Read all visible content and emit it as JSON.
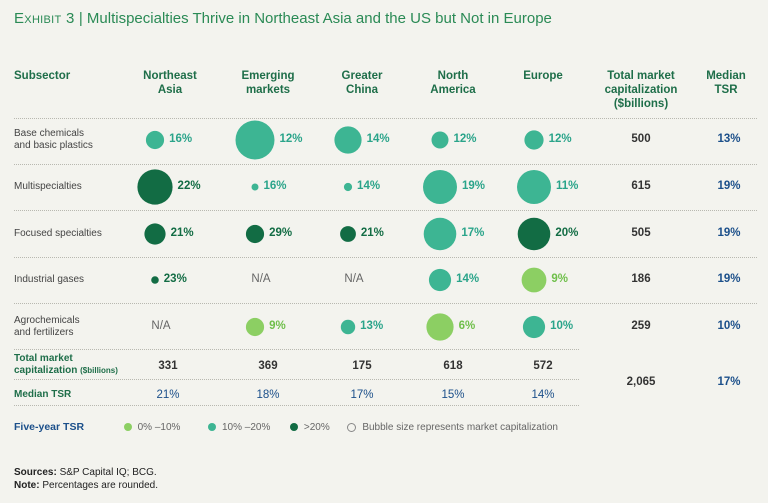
{
  "title_prefix": "Exhibit 3",
  "title_sep": "|",
  "title_text": "Multispecialties Thrive in Northeast Asia and the US but Not in Europe",
  "colors": {
    "low": "#8ccf63",
    "mid": "#3db593",
    "high": "#126c44",
    "pct_low": "#6fbf4a",
    "pct_mid": "#2aa48a",
    "pct_high": "#126c44"
  },
  "headers": {
    "subsector": "Subsector",
    "regions": [
      "Northeast\nAsia",
      "Emerging\nmarkets",
      "Greater\nChina",
      "North\nAmerica",
      "Europe"
    ],
    "total": "Total market\ncapitalization\n($billions)",
    "median": "Median\nTSR"
  },
  "chart_data": {
    "type": "bubble-table",
    "regions": [
      "Northeast Asia",
      "Emerging markets",
      "Greater China",
      "North America",
      "Europe"
    ],
    "rows": [
      {
        "label": "Base chemicals\nand basic plastics",
        "cells": [
          {
            "tsr": "16%",
            "bucket": "mid",
            "cap": 40
          },
          {
            "tsr": "12%",
            "bucket": "mid",
            "cap": 185
          },
          {
            "tsr": "14%",
            "bucket": "mid",
            "cap": 90
          },
          {
            "tsr": "12%",
            "bucket": "mid",
            "cap": 35
          },
          {
            "tsr": "12%",
            "bucket": "mid",
            "cap": 45
          }
        ],
        "total": "500",
        "median": "13%"
      },
      {
        "label": "Multispecialties",
        "cells": [
          {
            "tsr": "22%",
            "bucket": "high",
            "cap": 150
          },
          {
            "tsr": "16%",
            "bucket": "mid",
            "cap": 6
          },
          {
            "tsr": "14%",
            "bucket": "mid",
            "cap": 8
          },
          {
            "tsr": "19%",
            "bucket": "mid",
            "cap": 140
          },
          {
            "tsr": "11%",
            "bucket": "mid",
            "cap": 140
          }
        ],
        "total": "615",
        "median": "19%"
      },
      {
        "label": "Focused specialties",
        "cells": [
          {
            "tsr": "21%",
            "bucket": "high",
            "cap": 55
          },
          {
            "tsr": "29%",
            "bucket": "high",
            "cap": 40
          },
          {
            "tsr": "21%",
            "bucket": "high",
            "cap": 30
          },
          {
            "tsr": "17%",
            "bucket": "mid",
            "cap": 130
          },
          {
            "tsr": "20%",
            "bucket": "high",
            "cap": 130
          }
        ],
        "total": "505",
        "median": "19%"
      },
      {
        "label": "Industrial gases",
        "cells": [
          {
            "tsr": "23%",
            "bucket": "high",
            "cap": 7
          },
          null,
          null,
          {
            "tsr": "14%",
            "bucket": "mid",
            "cap": 60
          },
          {
            "tsr": "9%",
            "bucket": "low",
            "cap": 75
          }
        ],
        "total": "186",
        "median": "19%"
      },
      {
        "label": "Agrochemicals\nand fertilizers",
        "cells": [
          null,
          {
            "tsr": "9%",
            "bucket": "low",
            "cap": 40
          },
          {
            "tsr": "13%",
            "bucket": "mid",
            "cap": 25
          },
          {
            "tsr": "6%",
            "bucket": "low",
            "cap": 90
          },
          {
            "tsr": "10%",
            "bucket": "mid",
            "cap": 60
          }
        ],
        "total": "259",
        "median": "10%"
      }
    ],
    "na_text": "N/A",
    "total_row": {
      "label": "Total market\ncapitalization",
      "label_small": "($billions)",
      "values": [
        "331",
        "369",
        "175",
        "618",
        "572"
      ],
      "grand_total": "2,065"
    },
    "median_row": {
      "label": "Median TSR",
      "values": [
        "21%",
        "18%",
        "17%",
        "15%",
        "14%"
      ],
      "overall": "17%"
    },
    "legend": {
      "title": "Five-year TSR",
      "items": [
        "0% –10%",
        "10% –20%",
        ">20%"
      ],
      "note": "Bubble size represents market capitalization"
    }
  },
  "sources": {
    "label": "Sources:",
    "text": "S&P Capital IQ; BCG.",
    "note_label": "Note:",
    "note_text": "Percentages are rounded."
  }
}
